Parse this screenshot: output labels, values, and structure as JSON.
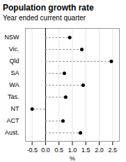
{
  "chart_data": {
    "type": "dot",
    "orientation": "horizontal",
    "title": "Population growth rate",
    "subtitle": "Year ended current quarter",
    "categories": [
      "NSW",
      "Vic.",
      "Qld",
      "SA",
      "WA",
      "Tas.",
      "NT",
      "ACT",
      "Aust."
    ],
    "values": [
      0.9,
      1.35,
      2.45,
      0.7,
      1.4,
      0.75,
      -0.5,
      0.65,
      1.3
    ],
    "color": "#000000",
    "xlabel": "%",
    "xlim": [
      -0.75,
      2.75
    ],
    "xticks": [
      -0.5,
      {
        "value": 0.0,
        "label": "0.0"
      },
      0.5,
      {
        "value": 1.0,
        "label": "1.0"
      },
      1.5,
      {
        "value": 2.0,
        "label": "2.0"
      },
      2.5
    ],
    "grid": true
  }
}
